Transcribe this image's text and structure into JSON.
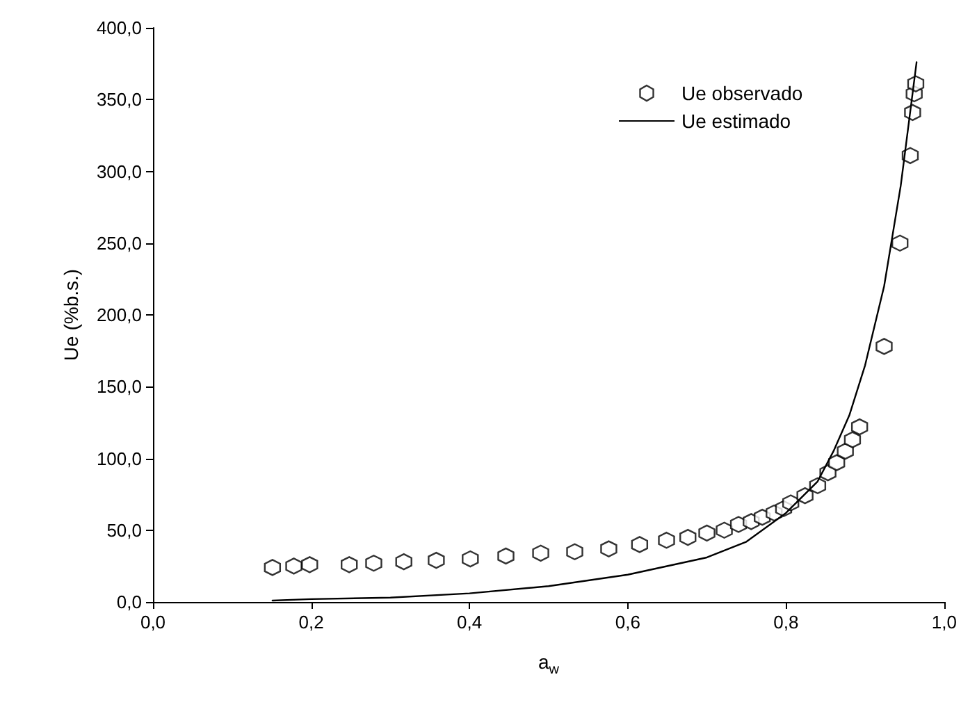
{
  "chart_data": {
    "type": "scatter",
    "xlabel": "a$_{w}$",
    "ylabel": "Ue (%b.s.)",
    "grid": false,
    "legend": "top right",
    "xlim": [
      0,
      1
    ],
    "xticks": [
      {
        "value": 0,
        "label": "0,0"
      },
      {
        "value": 0.2,
        "label": "0,2"
      },
      {
        "value": 0.4,
        "label": "0,4"
      },
      {
        "value": 0.6,
        "label": "0,6"
      },
      {
        "value": 0.8,
        "label": "0,8"
      },
      {
        "value": 1,
        "label": "1,0"
      }
    ],
    "ylim": [
      0,
      400
    ],
    "yticks": [
      {
        "value": 0,
        "label": "0,0"
      },
      {
        "value": 50,
        "label": "50,0"
      },
      {
        "value": 100,
        "label": "100,0"
      },
      {
        "value": 150,
        "label": "150,0"
      },
      {
        "value": 200,
        "label": "200,0"
      },
      {
        "value": 250,
        "label": "250,0"
      },
      {
        "value": 300,
        "label": "300,0"
      },
      {
        "value": 350,
        "label": "350,0"
      },
      {
        "value": 400,
        "label": "400,0"
      }
    ],
    "series": [
      {
        "name": "Ue observado",
        "color": "#000000",
        "x": [
          0.151,
          0.178,
          0.198,
          0.248,
          0.279,
          0.317,
          0.358,
          0.401,
          0.446,
          0.49,
          0.533,
          0.576,
          0.615,
          0.649,
          0.676,
          0.7,
          0.722,
          0.74,
          0.756,
          0.77,
          0.785,
          0.797,
          0.806,
          0.824,
          0.84,
          0.853,
          0.864,
          0.875,
          0.884,
          0.893,
          0.924,
          0.944,
          0.957,
          0.96,
          0.962,
          0.964
        ],
        "values": [
          24,
          25,
          26,
          26,
          27,
          28,
          29,
          30,
          32,
          34,
          35,
          37,
          40,
          43,
          45,
          48,
          50,
          54,
          56,
          59,
          62,
          65,
          69,
          74,
          81,
          90,
          97,
          105,
          113,
          122,
          178,
          250,
          311,
          341,
          354,
          361
        ]
      },
      {
        "name": "Ue estimado",
        "type": "line",
        "marker": "none",
        "line_style": "solid",
        "color": "#000000",
        "x": [
          0.151,
          0.2,
          0.3,
          0.4,
          0.5,
          0.6,
          0.7,
          0.75,
          0.8,
          0.84,
          0.86,
          0.88,
          0.9,
          0.924,
          0.945,
          0.965
        ],
        "values": [
          1,
          2,
          3,
          6,
          11,
          19,
          31,
          42,
          62,
          84,
          105,
          130,
          165,
          220,
          290,
          376
        ]
      }
    ]
  }
}
